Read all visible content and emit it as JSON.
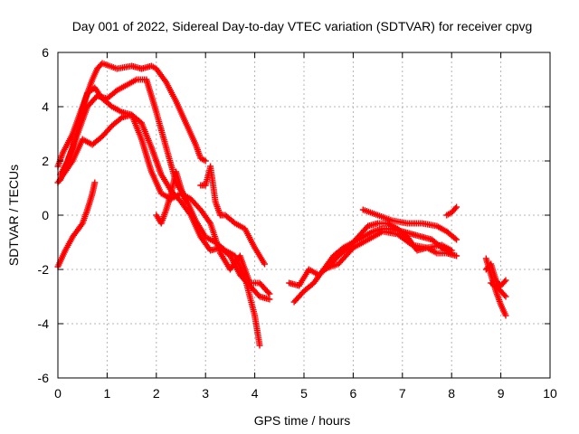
{
  "chart_data": {
    "type": "scatter",
    "title": "Day 001 of 2022, Sidereal Day-to-day VTEC variation (SDTVAR) for receiver cpvg",
    "xlabel": "GPS time / hours",
    "ylabel": "SDTVAR / TECUs",
    "xlim": [
      0,
      10
    ],
    "ylim": [
      -6,
      6
    ],
    "xticks": [
      "0",
      "1",
      "2",
      "3",
      "4",
      "5",
      "6",
      "7",
      "8",
      "9",
      "10"
    ],
    "yticks": [
      "-6",
      "-4",
      "-2",
      "0",
      "2",
      "4",
      "6"
    ],
    "grid": true,
    "marker": "plus",
    "series_color": "#ff0000",
    "tracks": [
      {
        "x": [
          0.0,
          0.1,
          0.3,
          0.5,
          0.7,
          0.8,
          0.9,
          1.2,
          1.5,
          1.7,
          1.9,
          2.0,
          2.2,
          2.4,
          2.6,
          2.8,
          2.9,
          3.0
        ],
        "y": [
          1.8,
          2.3,
          3.0,
          4.0,
          5.0,
          5.4,
          5.6,
          5.4,
          5.5,
          5.4,
          5.5,
          5.4,
          4.9,
          4.2,
          3.4,
          2.6,
          2.1,
          2.0
        ]
      },
      {
        "x": [
          0.05,
          0.2,
          0.4,
          0.6,
          0.8,
          1.0,
          1.2,
          1.4,
          1.6,
          1.8,
          2.0,
          2.2,
          2.4,
          2.6,
          2.8,
          3.0,
          3.2,
          3.4,
          3.6,
          3.8,
          3.9,
          4.0,
          4.1
        ],
        "y": [
          1.5,
          2.0,
          3.0,
          4.0,
          4.4,
          4.3,
          4.6,
          4.8,
          5.0,
          5.0,
          3.8,
          2.5,
          1.2,
          0.6,
          -0.2,
          -0.8,
          -1.0,
          -1.3,
          -1.5,
          -2.3,
          -3.0,
          -3.7,
          -4.8
        ]
      },
      {
        "x": [
          0.0,
          0.3,
          0.5,
          0.7,
          0.9,
          1.1,
          1.3,
          1.5,
          1.7,
          1.9,
          2.1,
          2.3,
          2.5,
          2.7,
          2.9,
          3.1,
          3.3,
          3.5,
          3.7,
          3.9,
          4.1,
          4.3
        ],
        "y": [
          1.2,
          2.0,
          2.8,
          2.6,
          2.9,
          3.3,
          3.6,
          3.7,
          3.4,
          2.5,
          1.5,
          0.9,
          0.5,
          0.0,
          -0.8,
          -1.3,
          -1.2,
          -1.5,
          -2.2,
          -2.6,
          -3.0,
          -3.1
        ]
      },
      {
        "x": [
          0.05,
          0.3,
          0.5,
          0.6,
          0.75,
          0.9,
          1.1,
          1.3,
          1.5,
          1.7,
          1.9,
          2.1,
          2.3,
          2.5,
          2.7,
          2.9,
          3.1,
          3.3,
          3.5,
          3.7,
          3.9,
          4.1,
          4.3
        ],
        "y": [
          1.3,
          2.5,
          3.9,
          4.5,
          4.7,
          4.3,
          4.0,
          3.8,
          3.7,
          2.8,
          1.6,
          0.8,
          0.6,
          0.8,
          0.6,
          0.2,
          -0.3,
          -1.4,
          -2.0,
          -1.5,
          -2.5,
          -2.5,
          -2.9
        ]
      },
      {
        "x": [
          0.0,
          0.15,
          0.3,
          0.5,
          0.6,
          0.7,
          0.75
        ],
        "y": [
          -1.9,
          -1.3,
          -0.8,
          -0.3,
          0.2,
          0.8,
          1.2
        ]
      },
      {
        "x": [
          2.0,
          2.1,
          2.2,
          2.3,
          2.4,
          2.5,
          2.6
        ],
        "y": [
          0.0,
          -0.3,
          0.2,
          0.8,
          1.6,
          1.0,
          0.5
        ]
      },
      {
        "x": [
          2.9,
          3.0,
          3.1,
          3.2,
          3.3,
          3.4,
          3.6,
          3.8,
          4.0,
          4.2
        ],
        "y": [
          1.1,
          1.1,
          1.8,
          0.5,
          0.0,
          0.0,
          -0.3,
          -0.5,
          -1.2,
          -1.8
        ]
      },
      {
        "x": [
          4.8,
          5.0,
          5.2,
          5.4,
          5.6,
          5.8,
          6.0,
          6.2,
          6.4,
          6.6,
          6.8,
          7.0,
          7.2,
          7.4,
          7.6,
          7.8,
          8.0
        ],
        "y": [
          -3.2,
          -2.8,
          -2.5,
          -2.0,
          -1.5,
          -1.2,
          -1.0,
          -0.8,
          -0.6,
          -0.5,
          -0.5,
          -0.6,
          -0.7,
          -0.8,
          -0.9,
          -1.2,
          -1.4
        ]
      },
      {
        "x": [
          4.7,
          4.9,
          5.1,
          5.3,
          5.5,
          5.7,
          5.9,
          6.1,
          6.3,
          6.5,
          6.7,
          6.9,
          7.1,
          7.3,
          7.5,
          7.7,
          7.9,
          8.1
        ],
        "y": [
          -2.5,
          -2.6,
          -2.0,
          -2.2,
          -1.9,
          -1.5,
          -1.2,
          -0.8,
          -0.4,
          -0.3,
          -0.3,
          -0.5,
          -0.8,
          -1.3,
          -1.2,
          -1.4,
          -1.4,
          -1.5
        ]
      },
      {
        "x": [
          6.2,
          6.5,
          6.8,
          7.1,
          7.4,
          7.7,
          7.9,
          8.1
        ],
        "y": [
          0.2,
          0.0,
          -0.2,
          -0.3,
          -0.3,
          -0.4,
          -0.6,
          -0.9
        ]
      },
      {
        "x": [
          5.4,
          5.7,
          6.0,
          6.3,
          6.6,
          6.9,
          7.2,
          7.5,
          7.8,
          8.0
        ],
        "y": [
          -2.0,
          -1.8,
          -1.2,
          -0.9,
          -0.6,
          -0.7,
          -1.1,
          -1.2,
          -1.1,
          -1.3
        ]
      },
      {
        "x": [
          7.9,
          8.0,
          8.1
        ],
        "y": [
          0.0,
          0.1,
          0.3
        ]
      },
      {
        "x": [
          8.7,
          8.8,
          8.9,
          9.0,
          9.1
        ],
        "y": [
          -1.6,
          -2.2,
          -2.8,
          -3.3,
          -3.7
        ]
      },
      {
        "x": [
          8.7,
          8.8,
          8.9,
          9.0,
          9.1
        ],
        "y": [
          -2.0,
          -1.8,
          -2.4,
          -2.6,
          -2.4
        ]
      },
      {
        "x": [
          8.8,
          8.9,
          9.0,
          9.1
        ],
        "y": [
          -2.5,
          -2.6,
          -2.8,
          -3.0
        ]
      }
    ]
  }
}
